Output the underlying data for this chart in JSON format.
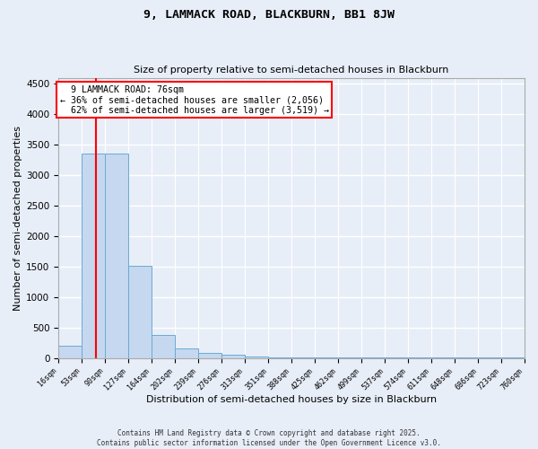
{
  "title1": "9, LAMMACK ROAD, BLACKBURN, BB1 8JW",
  "title2": "Size of property relative to semi-detached houses in Blackburn",
  "xlabel": "Distribution of semi-detached houses by size in Blackburn",
  "ylabel": "Number of semi-detached properties",
  "bin_edges": [
    16,
    53,
    90,
    127,
    164,
    202,
    239,
    276,
    313,
    351,
    388,
    425,
    462,
    499,
    537,
    574,
    611,
    648,
    686,
    723,
    760
  ],
  "bar_heights": [
    200,
    3360,
    3360,
    1510,
    370,
    150,
    80,
    45,
    20,
    10,
    8,
    5,
    3,
    2,
    2,
    1,
    1,
    1,
    1,
    1
  ],
  "bar_color": "#c5d8ef",
  "bar_edge_color": "#6aabd2",
  "property_size": 76,
  "property_label": "9 LAMMACK ROAD: 76sqm",
  "pct_smaller": 36,
  "count_smaller": 2056,
  "pct_larger": 62,
  "count_larger": 3519,
  "vline_color": "red",
  "ylim": [
    0,
    4600
  ],
  "yticks": [
    0,
    500,
    1000,
    1500,
    2000,
    2500,
    3000,
    3500,
    4000,
    4500
  ],
  "footnote": "Contains HM Land Registry data © Crown copyright and database right 2025.\nContains public sector information licensed under the Open Government Licence v3.0.",
  "bg_color": "#e8eef8",
  "grid_color": "#ffffff"
}
